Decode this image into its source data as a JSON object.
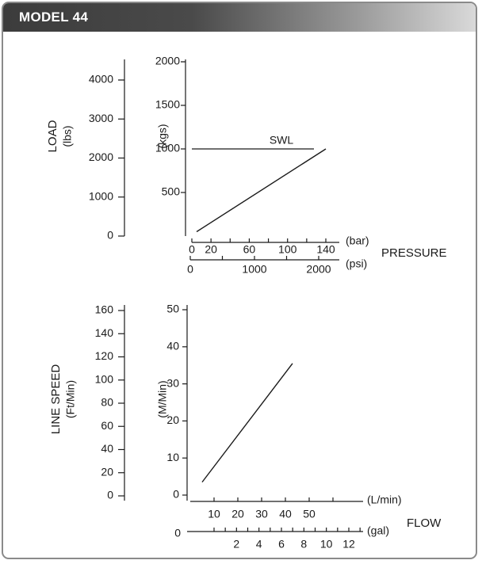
{
  "header": {
    "title": "MODEL 44"
  },
  "chart_data": [
    {
      "type": "line",
      "title": "",
      "left_axis": {
        "title": "LOAD",
        "unit": "(lbs)",
        "ticks": [
          0,
          1000,
          2000,
          3000,
          4000
        ]
      },
      "right_axis": {
        "title": "(kgs)",
        "ticks": [
          500,
          1000,
          1500,
          2000
        ]
      },
      "x_axis": {
        "unit": "(bar)",
        "ticks": [
          0,
          20,
          60,
          100,
          140
        ]
      },
      "x_axis2": {
        "unit": "(psi)",
        "ticks": [
          0,
          1000,
          2000
        ]
      },
      "xlabel": "PRESSURE",
      "ylim": [
        0,
        2000
      ],
      "xlim": [
        0,
        140
      ],
      "series": [
        {
          "name": "",
          "x": [
            5,
            140
          ],
          "y": [
            50,
            1000
          ]
        }
      ],
      "reference_line": {
        "label": "SWL",
        "y": 1000,
        "x_range": [
          0,
          130
        ]
      }
    },
    {
      "type": "line",
      "title": "",
      "left_axis": {
        "title": "LINE SPEED",
        "unit": "(Ft/Min)",
        "ticks": [
          0,
          20,
          40,
          60,
          80,
          100,
          120,
          140,
          160
        ]
      },
      "right_axis": {
        "title": "(M/Min)",
        "ticks": [
          0,
          10,
          20,
          30,
          40,
          50
        ]
      },
      "x_axis": {
        "unit": "(L/min)",
        "ticks": [
          10,
          20,
          30,
          40,
          50
        ]
      },
      "x_axis2": {
        "unit": "(gal)",
        "ticks": [
          0,
          2,
          4,
          6,
          8,
          10,
          12
        ]
      },
      "xlabel": "FLOW",
      "ylim": [
        0,
        50
      ],
      "xlim": [
        0,
        60
      ],
      "series": [
        {
          "name": "",
          "x": [
            5,
            43
          ],
          "y": [
            3.5,
            35.5
          ]
        }
      ]
    }
  ]
}
